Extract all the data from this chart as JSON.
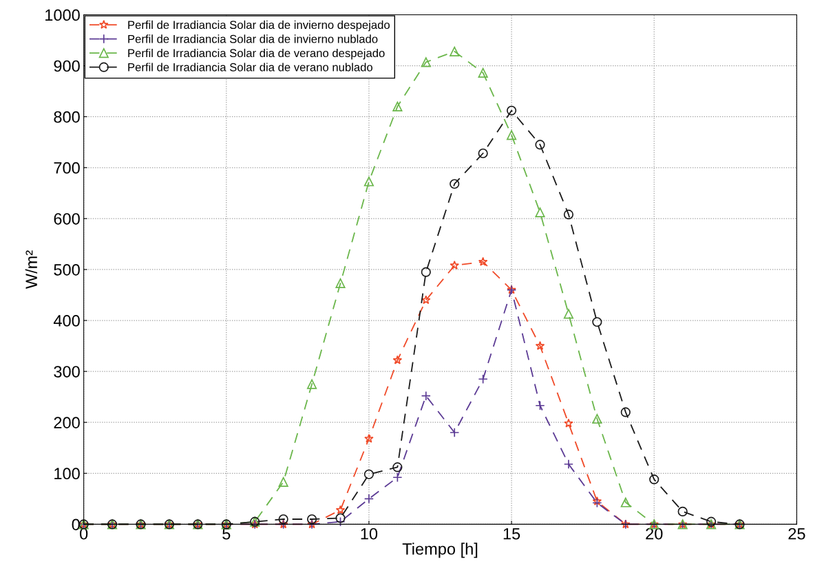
{
  "chart_data": {
    "type": "line",
    "xlabel": "Tiempo [h]",
    "ylabel": "W/m²",
    "x": [
      0,
      1,
      2,
      3,
      4,
      5,
      6,
      7,
      8,
      9,
      10,
      11,
      12,
      13,
      14,
      15,
      16,
      17,
      18,
      19,
      20,
      21,
      22,
      23
    ],
    "series": [
      {
        "name": "Perfil de Irradiancia Solar dia de invierno despejado",
        "color": "#f04a28",
        "marker": "star",
        "values": [
          0,
          0,
          0,
          0,
          0,
          0,
          0,
          0,
          0,
          28,
          168,
          322,
          440,
          508,
          515,
          460,
          350,
          198,
          45,
          0,
          0,
          0,
          0,
          0
        ]
      },
      {
        "name": "Perfil de Irradiancia Solar dia de invierno nublado",
        "color": "#5b3a94",
        "marker": "cross",
        "values": [
          0,
          0,
          0,
          0,
          0,
          0,
          0,
          0,
          0,
          5,
          50,
          92,
          252,
          180,
          285,
          460,
          233,
          118,
          42,
          0,
          0,
          0,
          0,
          0
        ]
      },
      {
        "name": "Perfil de Irradiancia Solar dia de verano despejado",
        "color": "#6ab64a",
        "marker": "triangle",
        "values": [
          0,
          0,
          0,
          0,
          0,
          0,
          5,
          83,
          275,
          473,
          673,
          820,
          907,
          928,
          886,
          764,
          612,
          413,
          207,
          43,
          0,
          0,
          0,
          0
        ]
      },
      {
        "name": "Perfil de Irradiancia Solar dia de verano nublado",
        "color": "#1a1a1a",
        "marker": "circle",
        "values": [
          0,
          0,
          0,
          0,
          0,
          0,
          5,
          10,
          10,
          12,
          98,
          112,
          495,
          668,
          728,
          812,
          745,
          608,
          397,
          220,
          88,
          25,
          5,
          0
        ]
      }
    ],
    "xlim": [
      0,
      25
    ],
    "xticks": [
      0,
      5,
      10,
      15,
      20,
      25
    ],
    "ylim": [
      0,
      1000
    ],
    "yticks": [
      0,
      100,
      200,
      300,
      400,
      500,
      600,
      700,
      800,
      900,
      1000
    ],
    "grid": true,
    "legend": "top left",
    "line_style": "dashed"
  }
}
